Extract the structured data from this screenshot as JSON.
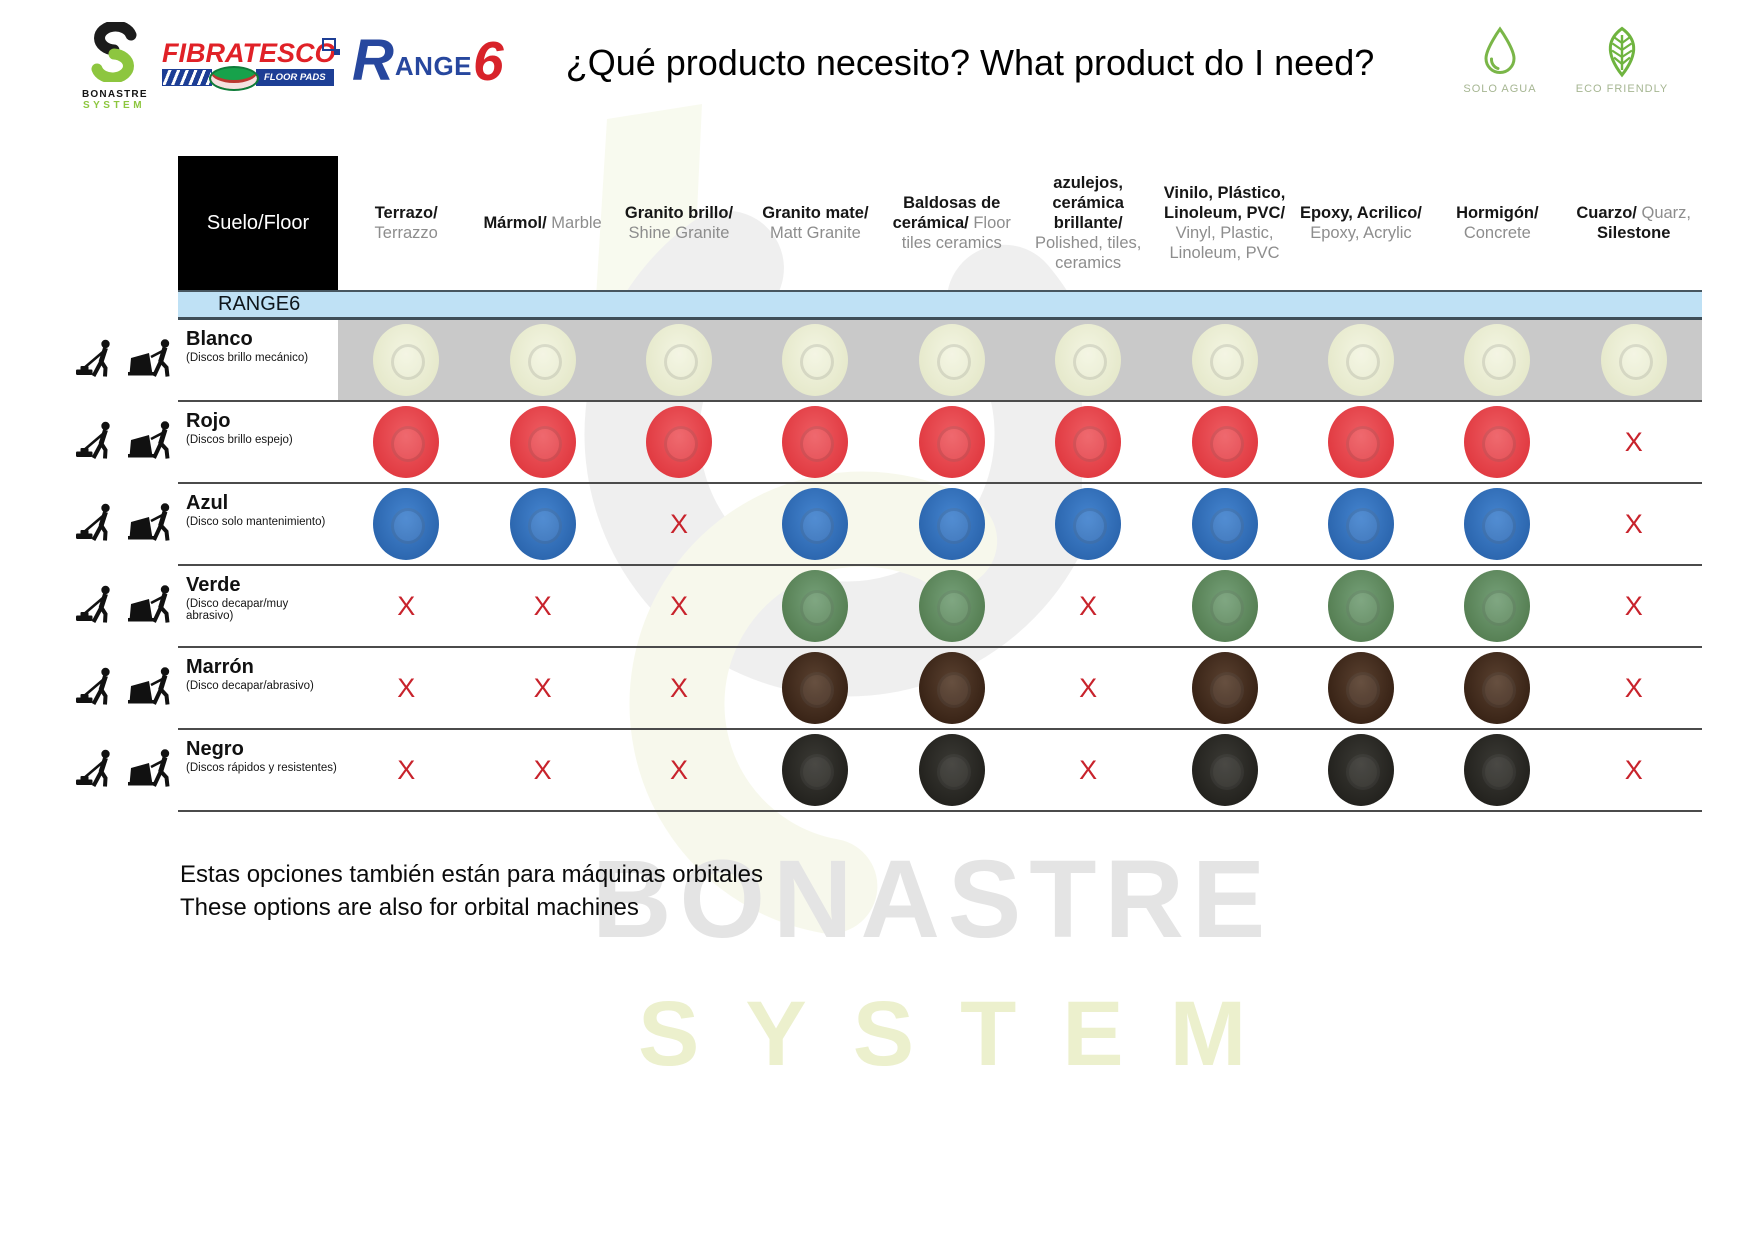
{
  "header": {
    "bonastre_logo": {
      "text_top": "BONASTRE",
      "text_bottom": "SYSTEM"
    },
    "fibratesco_logo": {
      "name": "FIBRATESCO",
      "tagline": "FLOOR PADS"
    },
    "range_logo": {
      "part1": "R",
      "part2": "ANGE",
      "part3": "6"
    },
    "title": "¿Qué producto necesito? What product do I need?",
    "badges": [
      {
        "icon": "water-drop-icon",
        "label": "SOLO AGUA"
      },
      {
        "icon": "leaf-icon",
        "label": "ECO FRIENDLY"
      }
    ]
  },
  "table": {
    "corner_label": "Suelo/Floor",
    "range_bar_label": "RANGE6",
    "x_symbol": "X",
    "row_icons": [
      "single-disc-machine-icon",
      "walk-behind-machine-icon"
    ],
    "columns": [
      {
        "id": "terrazo",
        "segments": [
          {
            "text": "Terrazo/",
            "tone": "dark"
          },
          {
            "text": "Terrazzo",
            "tone": "gray"
          }
        ]
      },
      {
        "id": "marmol",
        "segments": [
          {
            "text": "Mármol/",
            "tone": "dark"
          },
          {
            "text": "Marble",
            "tone": "gray"
          }
        ]
      },
      {
        "id": "granito-brillo",
        "segments": [
          {
            "text": "Granito brillo/",
            "tone": "dark"
          },
          {
            "text": "Shine Granite",
            "tone": "gray"
          }
        ]
      },
      {
        "id": "granito-mate",
        "segments": [
          {
            "text": "Granito mate/",
            "tone": "dark"
          },
          {
            "text": "Matt Granite",
            "tone": "gray"
          }
        ]
      },
      {
        "id": "baldosas",
        "segments": [
          {
            "text": "Baldosas de cerámica/",
            "tone": "dark"
          },
          {
            "text": "Floor tiles ceramics",
            "tone": "gray"
          }
        ]
      },
      {
        "id": "azulejos",
        "segments": [
          {
            "text": "azulejos, cerámica brillante/",
            "tone": "dark"
          },
          {
            "text": "Polished, tiles, ceramics",
            "tone": "gray"
          }
        ]
      },
      {
        "id": "vinilo",
        "segments": [
          {
            "text": "Vinilo, Plástico, Linoleum, PVC/",
            "tone": "dark"
          },
          {
            "text": "Vinyl, Plastic, Linoleum, PVC",
            "tone": "gray"
          }
        ]
      },
      {
        "id": "epoxy",
        "segments": [
          {
            "text": "Epoxy, Acrilico/",
            "tone": "dark"
          },
          {
            "text": "Epoxy, Acrylic",
            "tone": "gray"
          }
        ]
      },
      {
        "id": "hormigon",
        "segments": [
          {
            "text": "Hormigón/",
            "tone": "dark"
          },
          {
            "text": "Concrete",
            "tone": "gray"
          }
        ]
      },
      {
        "id": "cuarzo",
        "segments": [
          {
            "text": "Cuarzo/",
            "tone": "dark"
          },
          {
            "text": "Quarz,",
            "tone": "gray"
          },
          {
            "text": "Silestone",
            "tone": "dark"
          }
        ]
      }
    ],
    "rows": [
      {
        "name": "Blanco",
        "desc": "(Discos brillo mecánico)",
        "banded": true,
        "pad_light": "#f3f5e2",
        "pad_dark": "#e5e8ca",
        "cells": [
          "pad",
          "pad",
          "pad",
          "pad",
          "pad",
          "pad",
          "pad",
          "pad",
          "pad",
          "pad"
        ]
      },
      {
        "name": "Rojo",
        "desc": "(Discos brillo espejo)",
        "banded": false,
        "pad_light": "#ee5d63",
        "pad_dark": "#e0383f",
        "cells": [
          "pad",
          "pad",
          "pad",
          "pad",
          "pad",
          "pad",
          "pad",
          "pad",
          "pad",
          "x"
        ]
      },
      {
        "name": "Azul",
        "desc": "(Disco solo mantenimiento)",
        "banded": false,
        "pad_light": "#4484cf",
        "pad_dark": "#2a64ac",
        "cells": [
          "pad",
          "pad",
          "x",
          "pad",
          "pad",
          "pad",
          "pad",
          "pad",
          "pad",
          "x"
        ]
      },
      {
        "name": "Verde",
        "desc": "(Disco decapar/muy abrasivo)",
        "banded": false,
        "pad_light": "#75a078",
        "pad_dark": "#547d51",
        "cells": [
          "x",
          "x",
          "x",
          "pad",
          "pad",
          "x",
          "pad",
          "pad",
          "pad",
          "x"
        ]
      },
      {
        "name": "Marrón",
        "desc": "(Disco decapar/abrasivo)",
        "banded": false,
        "pad_light": "#5a4130",
        "pad_dark": "#362114",
        "cells": [
          "x",
          "x",
          "x",
          "pad",
          "pad",
          "x",
          "pad",
          "pad",
          "pad",
          "x"
        ]
      },
      {
        "name": "Negro",
        "desc": "(Discos rápidos y resistentes)",
        "banded": false,
        "pad_light": "#3b3a35",
        "pad_dark": "#21201c",
        "cells": [
          "x",
          "x",
          "x",
          "pad",
          "pad",
          "x",
          "pad",
          "pad",
          "pad",
          "x"
        ]
      }
    ]
  },
  "footer": {
    "note_line1": "Estas opciones también están para máquinas orbitales",
    "note_line2": "These options are also for orbital machines",
    "watermark_top": "BONASTRE",
    "watermark_bottom": "SYSTEM"
  },
  "colors": {
    "x_mark": "#c8232c",
    "range_bar_bg": "#bfe1f5",
    "blanco_band": "#c9c9c9",
    "accent_green": "#8dc63f",
    "fibratesco_red": "#e02127",
    "range_blue": "#27479e",
    "range_red": "#d8232a"
  }
}
